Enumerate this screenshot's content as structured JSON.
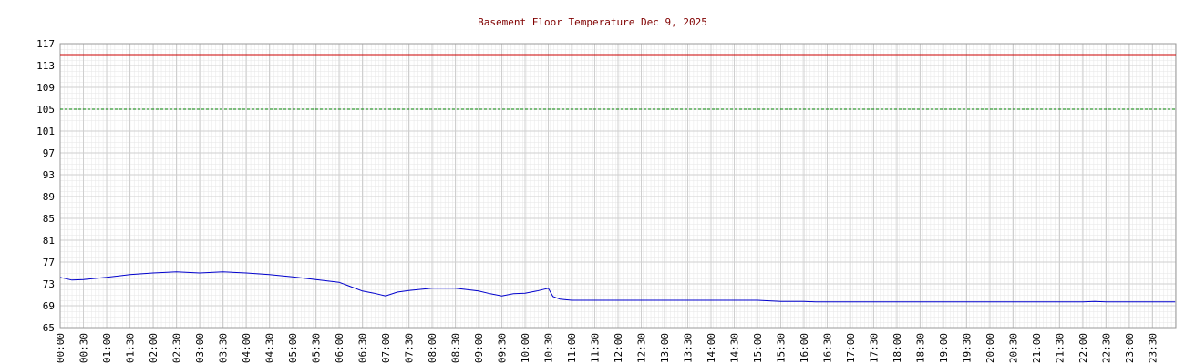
{
  "chart_data": {
    "type": "line",
    "title": "Basement Floor Temperature Dec 9, 2025",
    "x": [
      "00:00",
      "00:15",
      "00:30",
      "01:00",
      "01:30",
      "02:00",
      "02:30",
      "03:00",
      "03:30",
      "04:00",
      "04:30",
      "05:00",
      "05:30",
      "06:00",
      "06:15",
      "06:30",
      "06:45",
      "07:00",
      "07:15",
      "07:30",
      "08:00",
      "08:30",
      "09:00",
      "09:15",
      "09:30",
      "09:45",
      "10:00",
      "10:15",
      "10:30",
      "10:36",
      "10:45",
      "11:00",
      "12:00",
      "13:00",
      "14:00",
      "15:00",
      "15:30",
      "16:00",
      "16:15",
      "17:00",
      "18:00",
      "19:00",
      "20:00",
      "21:00",
      "22:00",
      "22:15",
      "22:30",
      "23:00",
      "23:30",
      "23:59"
    ],
    "series": [
      {
        "color": "#0000cc",
        "values": [
          74.2,
          73.7,
          73.8,
          74.2,
          74.7,
          75.0,
          75.2,
          75.0,
          75.2,
          75.0,
          74.7,
          74.3,
          73.8,
          73.3,
          72.5,
          71.7,
          71.3,
          70.8,
          71.5,
          71.8,
          72.2,
          72.2,
          71.7,
          71.2,
          70.8,
          71.2,
          71.3,
          71.7,
          72.2,
          70.7,
          70.2,
          70.0,
          70.0,
          70.0,
          70.0,
          70.0,
          69.8,
          69.8,
          69.7,
          69.7,
          69.7,
          69.7,
          69.7,
          69.7,
          69.7,
          69.8,
          69.7,
          69.7,
          69.7,
          69.7
        ]
      }
    ],
    "reference_lines": [
      {
        "value": 115,
        "color": "#cc0000",
        "dash": false
      },
      {
        "value": 105,
        "color": "#008000",
        "dash": true
      }
    ],
    "xlim": [
      "00:00",
      "24:00"
    ],
    "xticks": [
      "00:00",
      "00:30",
      "01:00",
      "01:30",
      "02:00",
      "02:30",
      "03:00",
      "03:30",
      "04:00",
      "04:30",
      "05:00",
      "05:30",
      "06:00",
      "06:30",
      "07:00",
      "07:30",
      "08:00",
      "08:30",
      "09:00",
      "09:30",
      "10:00",
      "10:30",
      "11:00",
      "11:30",
      "12:00",
      "12:30",
      "13:00",
      "13:30",
      "14:00",
      "14:30",
      "15:00",
      "15:30",
      "16:00",
      "16:30",
      "17:00",
      "17:30",
      "18:00",
      "18:30",
      "19:00",
      "19:30",
      "20:00",
      "20:30",
      "21:00",
      "21:30",
      "22:00",
      "22:30",
      "23:00",
      "23:30"
    ],
    "ylim": [
      65,
      117
    ],
    "yticks": [
      65,
      69,
      73,
      77,
      81,
      85,
      89,
      93,
      97,
      101,
      105,
      109,
      113,
      117
    ],
    "grid": true
  }
}
